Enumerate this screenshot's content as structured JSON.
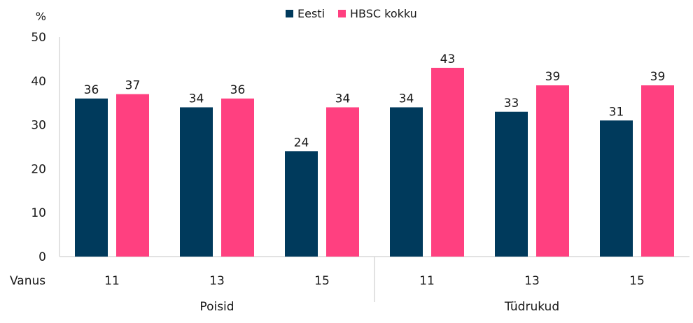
{
  "chart_data": {
    "type": "bar",
    "ylabel": "%",
    "ylim": [
      0,
      50
    ],
    "yticks": [
      0,
      10,
      20,
      30,
      40,
      50
    ],
    "grid": false,
    "legend_position": "top-center",
    "x_axis_title": "Vanus",
    "groups": [
      {
        "label": "Poisid",
        "categories": [
          "11",
          "13",
          "15"
        ]
      },
      {
        "label": "Tüdrukud",
        "categories": [
          "11",
          "13",
          "15"
        ]
      }
    ],
    "categories": [
      "11",
      "13",
      "15",
      "11",
      "13",
      "15"
    ],
    "series": [
      {
        "name": "Eesti",
        "color": "#003A5C",
        "values": [
          36,
          34,
          24,
          34,
          33,
          31
        ]
      },
      {
        "name": "HBSC kokku",
        "color": "#FF4080",
        "values": [
          37,
          36,
          34,
          43,
          39,
          39
        ]
      }
    ]
  }
}
